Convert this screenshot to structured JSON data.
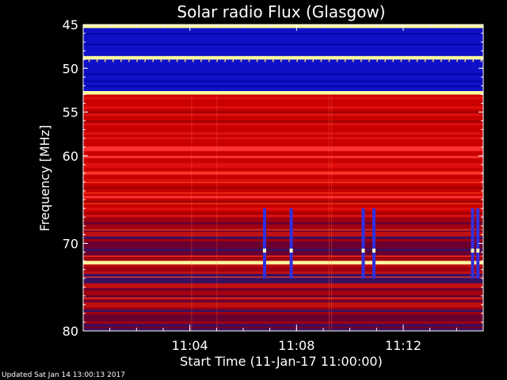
{
  "chart_data": {
    "type": "heatmap",
    "title": "Solar radio Flux (Glasgow)",
    "ylabel": "Frequency [MHz]",
    "xlabel": "Start Time (11-Jan-17 11:00:00)",
    "ylim": [
      45,
      80
    ],
    "y_ticks": [
      45,
      50,
      55,
      60,
      70,
      80
    ],
    "y_tick_labels": [
      "45",
      "50",
      "55",
      "60",
      "70",
      "80"
    ],
    "xlim_minutes": [
      0,
      15
    ],
    "x_ticks_minutes": [
      4,
      8,
      12
    ],
    "x_tick_labels": [
      "11:04",
      "11:08",
      "11:12"
    ],
    "colors": {
      "low": "#1010c8",
      "mid": "#c00000",
      "high": "#ffffa0",
      "background": "#000000",
      "text": "#ffffff"
    },
    "bands": [
      {
        "f_start": 45.0,
        "f_end": 45.4,
        "level": "high"
      },
      {
        "f_start": 45.4,
        "f_end": 48.6,
        "level": "low"
      },
      {
        "f_start": 48.6,
        "f_end": 49.0,
        "level": "high"
      },
      {
        "f_start": 49.0,
        "f_end": 52.6,
        "level": "low"
      },
      {
        "f_start": 52.6,
        "f_end": 53.0,
        "level": "high"
      },
      {
        "f_start": 53.0,
        "f_end": 67.0,
        "level": "mid"
      },
      {
        "f_start": 67.0,
        "f_end": 72.0,
        "level": "mixed"
      },
      {
        "f_start": 72.0,
        "f_end": 72.4,
        "level": "high"
      },
      {
        "f_start": 72.4,
        "f_end": 80.0,
        "level": "mixed"
      }
    ],
    "bursts": [
      {
        "time_minutes": 6.8,
        "f_start": 66.0,
        "f_end": 74.0
      },
      {
        "time_minutes": 7.8,
        "f_start": 66.0,
        "f_end": 74.0
      },
      {
        "time_minutes": 10.5,
        "f_start": 66.0,
        "f_end": 74.0
      },
      {
        "time_minutes": 10.9,
        "f_start": 66.0,
        "f_end": 74.0
      },
      {
        "time_minutes": 14.6,
        "f_start": 66.0,
        "f_end": 74.0
      },
      {
        "time_minutes": 14.8,
        "f_start": 66.0,
        "f_end": 74.0
      }
    ]
  },
  "footer": {
    "updated": "Updated Sat Jan 14 13:00:13 2017"
  }
}
